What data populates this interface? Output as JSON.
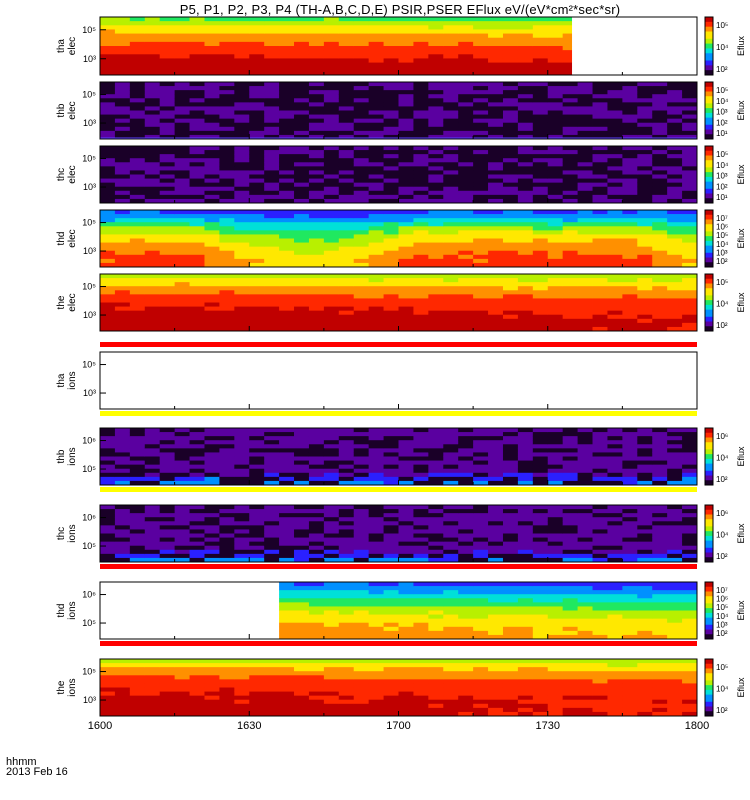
{
  "title": "P5, P1, P2, P3, P4 (TH-A,B,C,D,E) PSIR,PSER EFlux eV/(eV*cm²*sec*sr)",
  "x_label_line1": "hhmm",
  "x_label_line2": "2013 Feb 16",
  "colorbar_label": "Eflux",
  "colormap": [
    "#1a0028",
    "#5a00a0",
    "#2a20ff",
    "#0090ff",
    "#00e0d8",
    "#20e860",
    "#b8f000",
    "#ffe800",
    "#ff9000",
    "#ff2800",
    "#c00000"
  ],
  "colors": {
    "red_bar": "#ff0000",
    "yellow_bar": "#ffff00",
    "frame": "#000000"
  },
  "chart_data": {
    "type": "heatmap",
    "x_axis": {
      "ticks": [
        "1600",
        "1630",
        "1700",
        "1730",
        "1800"
      ],
      "range": [
        "16:00",
        "18:00"
      ]
    },
    "panels": [
      {
        "probe": "tha",
        "species": "elec",
        "yticks": [
          "10⁵",
          "10³"
        ],
        "cbar_ticks": [
          "10⁵",
          "10⁴",
          "10²"
        ],
        "pattern": "smooth",
        "data_end_fraction": 0.79,
        "data_start_fraction": 0,
        "rows": [
          0.55,
          0.7,
          0.8,
          0.88,
          0.95,
          1.0,
          1.0
        ]
      },
      {
        "probe": "thb",
        "species": "elec",
        "yticks": [
          "10⁵",
          "10³"
        ],
        "cbar_ticks": [
          "10⁵",
          "10⁴",
          "10³",
          "10²",
          "10¹"
        ],
        "pattern": "noise",
        "data_end_fraction": 1,
        "data_start_fraction": 0,
        "bottom_line": true
      },
      {
        "probe": "thc",
        "species": "elec",
        "yticks": [
          "10⁵",
          "10³"
        ],
        "cbar_ticks": [
          "10⁵",
          "10⁴",
          "10³",
          "10²",
          "10¹"
        ],
        "pattern": "noise",
        "data_end_fraction": 1,
        "data_start_fraction": 0
      },
      {
        "probe": "thd",
        "species": "elec",
        "yticks": [
          "10⁵",
          "10³"
        ],
        "cbar_ticks": [
          "10⁷",
          "10⁶",
          "10⁵",
          "10⁴",
          "10³",
          "10²"
        ],
        "pattern": "wave",
        "data_end_fraction": 1,
        "data_start_fraction": 0,
        "rows": [
          0.25,
          0.38,
          0.6,
          0.72,
          0.8,
          0.86,
          0.88
        ]
      },
      {
        "probe": "the",
        "species": "elec",
        "yticks": [
          "10⁵",
          "10³"
        ],
        "cbar_ticks": [
          "10⁵",
          "10⁴",
          "10²"
        ],
        "pattern": "smooth",
        "data_end_fraction": 1,
        "data_start_fraction": 0,
        "rows": [
          0.62,
          0.75,
          0.86,
          0.93,
          0.98,
          1.0,
          1.0
        ]
      },
      {
        "probe": "tha",
        "species": "ions",
        "yticks": [
          "10⁵",
          "10³"
        ],
        "cbar_ticks": [],
        "pattern": "empty",
        "top_bar": "red",
        "bottom_bar": "yellow"
      },
      {
        "probe": "thb",
        "species": "ions",
        "yticks": [
          "10⁶",
          "10⁵"
        ],
        "cbar_ticks": [
          "10⁶",
          "10⁴",
          "10²"
        ],
        "pattern": "noise_ion",
        "data_end_fraction": 1,
        "data_start_fraction": 0,
        "bottom_bar": "yellow"
      },
      {
        "probe": "thc",
        "species": "ions",
        "yticks": [
          "10⁶",
          "10⁵"
        ],
        "cbar_ticks": [
          "10⁶",
          "10⁴",
          "10²"
        ],
        "pattern": "noise_ion",
        "data_end_fraction": 1,
        "data_start_fraction": 0,
        "bottom_bar": "red"
      },
      {
        "probe": "thd",
        "species": "ions",
        "yticks": [
          "10⁶",
          "10⁵"
        ],
        "cbar_ticks": [
          "10⁷",
          "10⁶",
          "10⁵",
          "10⁴",
          "10³",
          "10²"
        ],
        "pattern": "ion_smooth",
        "data_end_fraction": 1,
        "data_start_fraction": 0.3,
        "bottom_bar": "red",
        "rows": [
          0.3,
          0.42,
          0.55,
          0.68,
          0.76,
          0.82,
          0.86
        ]
      },
      {
        "probe": "the",
        "species": "ions",
        "yticks": [
          "10⁵",
          "10³"
        ],
        "cbar_ticks": [
          "10⁵",
          "10⁴",
          "10²"
        ],
        "pattern": "smooth",
        "data_end_fraction": 1,
        "data_start_fraction": 0,
        "rows": [
          0.62,
          0.78,
          0.88,
          0.94,
          0.97,
          0.98,
          0.98
        ]
      }
    ]
  }
}
